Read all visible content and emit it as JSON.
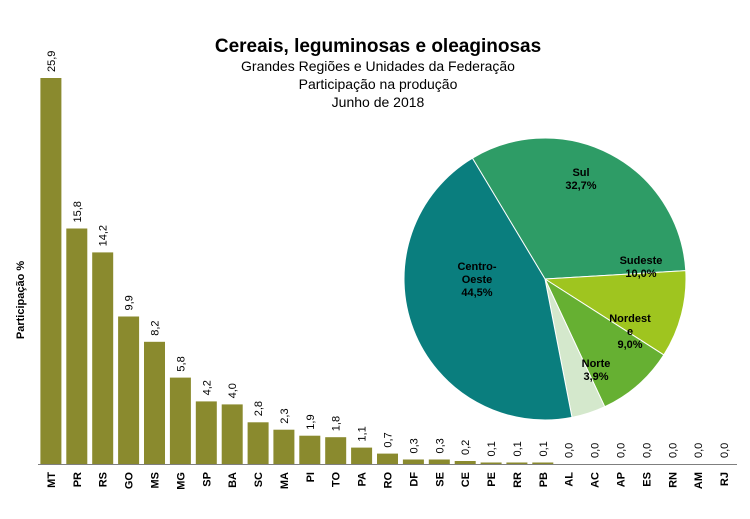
{
  "title": "Cereais, leguminosas  e oleaginosas",
  "subtitle_lines": [
    "Grandes Regiões  e Unidades  da Federação",
    "Participação na produção",
    "Junho  de 2018"
  ],
  "ylabel": "Participação %",
  "colors": {
    "bar": "#8a8a2e",
    "axis": "#7f7f7f",
    "pie": [
      "#2e9c66",
      "#9fc51f",
      "#66b032",
      "#d4e8cc",
      "#0a7e7e"
    ]
  },
  "chart_data": [
    {
      "type": "bar",
      "title": "Cereais, leguminosas  e oleaginosas",
      "ylabel": "Participação %",
      "ylim": [
        0,
        26
      ],
      "grid": false,
      "categories": [
        "MT",
        "PR",
        "RS",
        "GO",
        "MS",
        "MG",
        "SP",
        "BA",
        "SC",
        "MA",
        "PI",
        "TO",
        "PA",
        "RO",
        "DF",
        "SE",
        "CE",
        "PE",
        "RR",
        "PB",
        "AL",
        "AC",
        "AP",
        "ES",
        "RN",
        "AM",
        "RJ"
      ],
      "values": [
        25.9,
        15.8,
        14.2,
        9.9,
        8.2,
        5.8,
        4.2,
        4.0,
        2.8,
        2.3,
        1.9,
        1.8,
        1.1,
        0.7,
        0.3,
        0.3,
        0.2,
        0.1,
        0.1,
        0.1,
        0.0,
        0.0,
        0.0,
        0.0,
        0.0,
        0.0,
        0.0
      ],
      "value_labels": [
        "25,9",
        "15,8",
        "14,2",
        "9,9",
        "8,2",
        "5,8",
        "4,2",
        "4,0",
        "2,8",
        "2,3",
        "1,9",
        "1,8",
        "1,1",
        "0,7",
        "0,3",
        "0,3",
        "0,2",
        "0,1",
        "0,1",
        "0,1",
        "0,0",
        "0,0",
        "0,0",
        "0,0",
        "0,0",
        "0,0",
        "0,0"
      ]
    },
    {
      "type": "pie",
      "slices": [
        {
          "label_lines": [
            "Sul",
            "32,7%"
          ],
          "value": 32.7
        },
        {
          "label_lines": [
            "Sudeste",
            "10,0%"
          ],
          "value": 10.0
        },
        {
          "label_lines": [
            "Nordest",
            "e",
            "9,0%"
          ],
          "value": 9.0
        },
        {
          "label_lines": [
            "Norte",
            "3,9%"
          ],
          "value": 3.9
        },
        {
          "label_lines": [
            "Centro-",
            "Oeste",
            "44,5%"
          ],
          "value": 44.5
        }
      ]
    }
  ]
}
